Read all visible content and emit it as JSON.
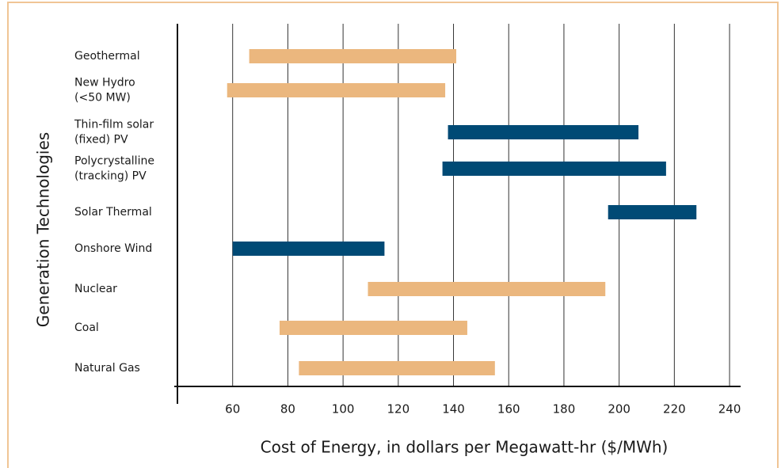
{
  "chart_data": {
    "type": "range-bar",
    "x_label": "Cost of Energy, in dollars per Megawatt-hr ($/MWh)",
    "y_label": "Generation Technologies",
    "categories": [
      [
        "Geothermal"
      ],
      [
        "New Hydro",
        "(<50 MW)"
      ],
      [
        "Thin-film solar",
        "(fixed) PV"
      ],
      [
        "Polycrystalline",
        "(tracking) PV"
      ],
      [
        "Solar Thermal"
      ],
      [
        "Onshore Wind"
      ],
      [
        "Nuclear"
      ],
      [
        "Coal"
      ],
      [
        "Natural Gas"
      ]
    ],
    "low": [
      66,
      58,
      138,
      136,
      196,
      60,
      109,
      77,
      84
    ],
    "high": [
      141,
      137,
      207,
      217,
      228,
      115,
      195,
      145,
      155
    ],
    "colors": [
      "#ebb77e",
      "#ebb77e",
      "#004a75",
      "#004a75",
      "#004a75",
      "#004a75",
      "#ebb77e",
      "#ebb77e",
      "#ebb77e"
    ],
    "xlim": [
      40,
      244
    ],
    "xticks": [
      60,
      80,
      100,
      120,
      140,
      160,
      180,
      200,
      220,
      240
    ],
    "grid": true
  }
}
